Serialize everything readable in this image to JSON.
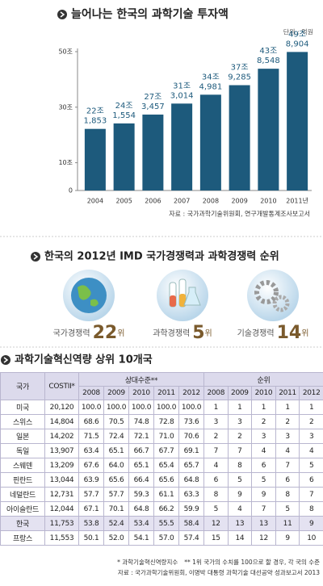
{
  "chart_data": {
    "type": "bar",
    "title": "늘어나는 한국의 과학기술 투자액",
    "unit_note": "단위 : 억원",
    "source": "자료 : 국가과학기술위원회, 연구개발통계조사보고서",
    "categories": [
      "2004",
      "2005",
      "2006",
      "2007",
      "2008",
      "2009",
      "2010",
      "2011년"
    ],
    "values": [
      22.1853,
      24.1554,
      27.3457,
      31.3014,
      34.4981,
      37.9285,
      43.8548,
      49.8904
    ],
    "value_labels": [
      [
        "22조",
        "1,853"
      ],
      [
        "24조",
        "1,554"
      ],
      [
        "27조",
        "3,457"
      ],
      [
        "31조",
        "3,014"
      ],
      [
        "34조",
        "4,981"
      ],
      [
        "37조",
        "9,285"
      ],
      [
        "43조",
        "8,548"
      ],
      [
        "49조",
        "8,904"
      ]
    ],
    "color": "#1d5a7c",
    "ylim": [
      0,
      50
    ],
    "yticks": [
      {
        "value": 50,
        "label": "50조"
      },
      {
        "value": 30,
        "label": "30조"
      },
      {
        "value": 10,
        "label": "10조"
      },
      0
    ],
    "grid": false
  },
  "rankings": {
    "title": "한국의 2012년 IMD 국가경쟁력과 과학경쟁력 순위",
    "items": [
      {
        "label": "국가경쟁력",
        "rank": 22,
        "unit": "위"
      },
      {
        "label": "과학경쟁력",
        "rank": 5,
        "unit": "위"
      },
      {
        "label": "기술경쟁력",
        "rank": 14,
        "unit": "위"
      }
    ]
  },
  "table": {
    "title": "과학기술혁신역량 상위 10개국",
    "header": [
      "국가",
      "COSTII*",
      "상대수준**",
      "순위"
    ],
    "years": [
      "2008",
      "2009",
      "2010",
      "2011",
      "2012"
    ],
    "highlight_row": 8,
    "rows": [
      [
        "미국",
        "20,120",
        "100.0",
        "100.0",
        "100.0",
        "100.0",
        "100.0",
        "1",
        "1",
        "1",
        "1",
        "1"
      ],
      [
        "스위스",
        "14,804",
        "68.6",
        "70.5",
        "74.8",
        "72.8",
        "73.6",
        "3",
        "3",
        "2",
        "2",
        "2"
      ],
      [
        "일본",
        "14,202",
        "71.5",
        "72.4",
        "72.1",
        "71.0",
        "70.6",
        "2",
        "2",
        "3",
        "3",
        "3"
      ],
      [
        "독일",
        "13,907",
        "63.4",
        "65.1",
        "66.7",
        "67.7",
        "69.1",
        "7",
        "7",
        "4",
        "4",
        "4"
      ],
      [
        "스웨덴",
        "13,209",
        "67.6",
        "64.0",
        "65.1",
        "65.4",
        "65.7",
        "4",
        "8",
        "6",
        "7",
        "5"
      ],
      [
        "핀란드",
        "13,044",
        "63.9",
        "65.6",
        "66.4",
        "65.6",
        "64.8",
        "6",
        "5",
        "5",
        "6",
        "6"
      ],
      [
        "네덜란드",
        "12,731",
        "57.7",
        "57.7",
        "59.3",
        "61.1",
        "63.3",
        "8",
        "9",
        "9",
        "8",
        "7"
      ],
      [
        "아이슬란드",
        "12,044",
        "67.1",
        "70.1",
        "64.8",
        "66.2",
        "59.9",
        "5",
        "4",
        "7",
        "5",
        "8"
      ],
      [
        "한국",
        "11,753",
        "53.8",
        "52.4",
        "53.4",
        "55.5",
        "58.4",
        "12",
        "13",
        "13",
        "11",
        "9"
      ],
      [
        "프랑스",
        "11,553",
        "50.1",
        "52.0",
        "54.1",
        "57.0",
        "57.4",
        "15",
        "14",
        "12",
        "9",
        "10"
      ]
    ],
    "notes": [
      "* 과학기술혁신역량지수",
      "** 1위 국가의 수치를 100으로 할 경우, 각 국의 수준",
      "자료 : 국가과학기술위원회, 이명박 대통령 과학기술 대선공약 성과보고서 2013"
    ]
  }
}
